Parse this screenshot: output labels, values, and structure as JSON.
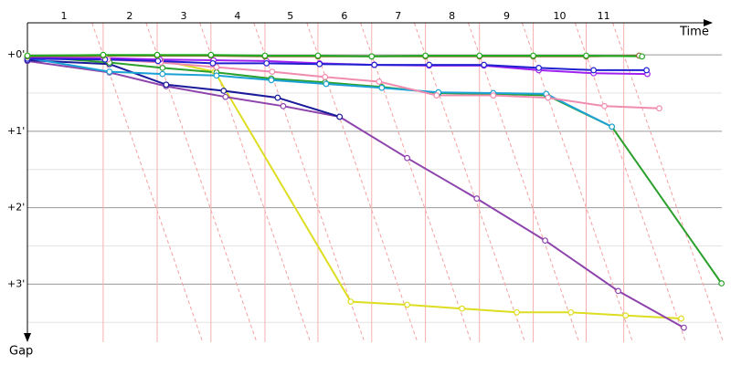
{
  "chart_data": {
    "type": "line",
    "x_label": "Time",
    "y_label": "Gap",
    "xlim": [
      0,
      26.5
    ],
    "ylim": [
      -0.42,
      3.76
    ],
    "xticks": [
      {
        "value": 1.38,
        "label": "1"
      },
      {
        "value": 3.86,
        "label": "2"
      },
      {
        "value": 5.9,
        "label": "3"
      },
      {
        "value": 7.93,
        "label": "4"
      },
      {
        "value": 9.93,
        "label": "5"
      },
      {
        "value": 11.97,
        "label": "6"
      },
      {
        "value": 14.0,
        "label": "7"
      },
      {
        "value": 16.03,
        "label": "8"
      },
      {
        "value": 18.1,
        "label": "9"
      },
      {
        "value": 20.1,
        "label": "10"
      },
      {
        "value": 21.76,
        "label": "11"
      }
    ],
    "lap_lines": [
      2.86,
      4.9,
      6.93,
      8.97,
      10.97,
      13.0,
      15.03,
      17.07,
      19.1,
      21.1,
      22.52
    ],
    "yticks": [
      {
        "value": 0,
        "label": "+0'"
      },
      {
        "value": 1,
        "label": "+1'"
      },
      {
        "value": 2,
        "label": "+2'"
      },
      {
        "value": 3,
        "label": "+3'"
      }
    ],
    "minor_yticks": [
      0.5,
      1.5,
      2.5,
      3.5
    ],
    "grid": true,
    "series": [
      {
        "color": "#dddd22",
        "x": [
          0,
          2.93,
          5.03,
          7.07,
          12.21,
          14.34,
          16.41,
          18.48,
          20.52,
          22.59,
          24.69
        ],
        "values": [
          0.01,
          0.04,
          0.07,
          0.22,
          3.23,
          3.27,
          3.32,
          3.37,
          3.37,
          3.41,
          3.45
        ]
      },
      {
        "color": "#8e44ad",
        "x": [
          0,
          3.1,
          5.24,
          7.48,
          9.66,
          11.79,
          14.34,
          16.97,
          19.55,
          22.31,
          24.79
        ],
        "values": [
          0.08,
          0.23,
          0.41,
          0.55,
          0.67,
          0.81,
          1.35,
          1.88,
          2.43,
          3.09,
          3.57
        ]
      },
      {
        "color": "#1a1a9a",
        "x": [
          0,
          3.1,
          5.24,
          7.41,
          9.45,
          11.79
        ],
        "values": [
          0.07,
          0.12,
          0.39,
          0.47,
          0.56,
          0.81
        ]
      },
      {
        "color": "#2ca02c",
        "x": [
          0,
          3.1,
          5.1,
          7.14,
          9.21,
          11.24,
          13.38,
          15.52,
          17.59,
          19.62,
          22.07,
          26.21
        ],
        "values": [
          0.02,
          0.1,
          0.17,
          0.23,
          0.31,
          0.36,
          0.42,
          0.5,
          0.51,
          0.53,
          0.94,
          2.99
        ]
      },
      {
        "color": "#1ba1d6",
        "x": [
          0,
          3.1,
          5.1,
          7.14,
          9.21,
          11.28,
          13.38,
          15.52,
          17.59,
          19.59,
          22.07
        ],
        "values": [
          0.04,
          0.22,
          0.25,
          0.27,
          0.33,
          0.38,
          0.43,
          0.49,
          0.5,
          0.51,
          0.94
        ]
      },
      {
        "color": "#f08cb0",
        "x": [
          0,
          3.03,
          5.03,
          7.14,
          9.24,
          11.24,
          13.28,
          15.45,
          17.59,
          19.66,
          21.79,
          23.86
        ],
        "values": [
          0.02,
          0.06,
          0.1,
          0.16,
          0.22,
          0.29,
          0.35,
          0.53,
          0.53,
          0.56,
          0.67,
          0.7
        ]
      },
      {
        "color": "#a020f0",
        "x": [
          0,
          2.86,
          5.0,
          7.03,
          9.03,
          11.03,
          13.1,
          15.17,
          17.24,
          19.31,
          21.38,
          23.41
        ],
        "values": [
          0.04,
          0.04,
          0.06,
          0.07,
          0.08,
          0.11,
          0.13,
          0.14,
          0.14,
          0.2,
          0.24,
          0.25
        ]
      },
      {
        "color": "#2020d0",
        "x": [
          0,
          2.93,
          4.93,
          7.0,
          9.03,
          11.03,
          13.1,
          15.17,
          17.24,
          19.31,
          21.38,
          23.38
        ],
        "values": [
          0.05,
          0.06,
          0.08,
          0.11,
          0.11,
          0.12,
          0.13,
          0.13,
          0.13,
          0.17,
          0.2,
          0.2
        ]
      },
      {
        "color": "#8b6b2b",
        "x": [
          0,
          2.86,
          4.9,
          6.93,
          8.97,
          10.97,
          13.0,
          15.03,
          17.07,
          19.1,
          21.1,
          23.1
        ],
        "values": [
          0.02,
          0.01,
          0.01,
          0.01,
          0.02,
          0.02,
          0.02,
          0.02,
          0.02,
          0.02,
          0.02,
          0.01
        ]
      },
      {
        "color": "#22aa22",
        "x": [
          0,
          2.86,
          4.9,
          6.93,
          8.97,
          10.97,
          13.0,
          15.03,
          17.07,
          19.1,
          21.1,
          23.21
        ],
        "values": [
          0.01,
          0,
          0,
          0,
          0.01,
          0.01,
          0.02,
          0.01,
          0.01,
          0.01,
          0.01,
          0.02
        ]
      }
    ]
  }
}
